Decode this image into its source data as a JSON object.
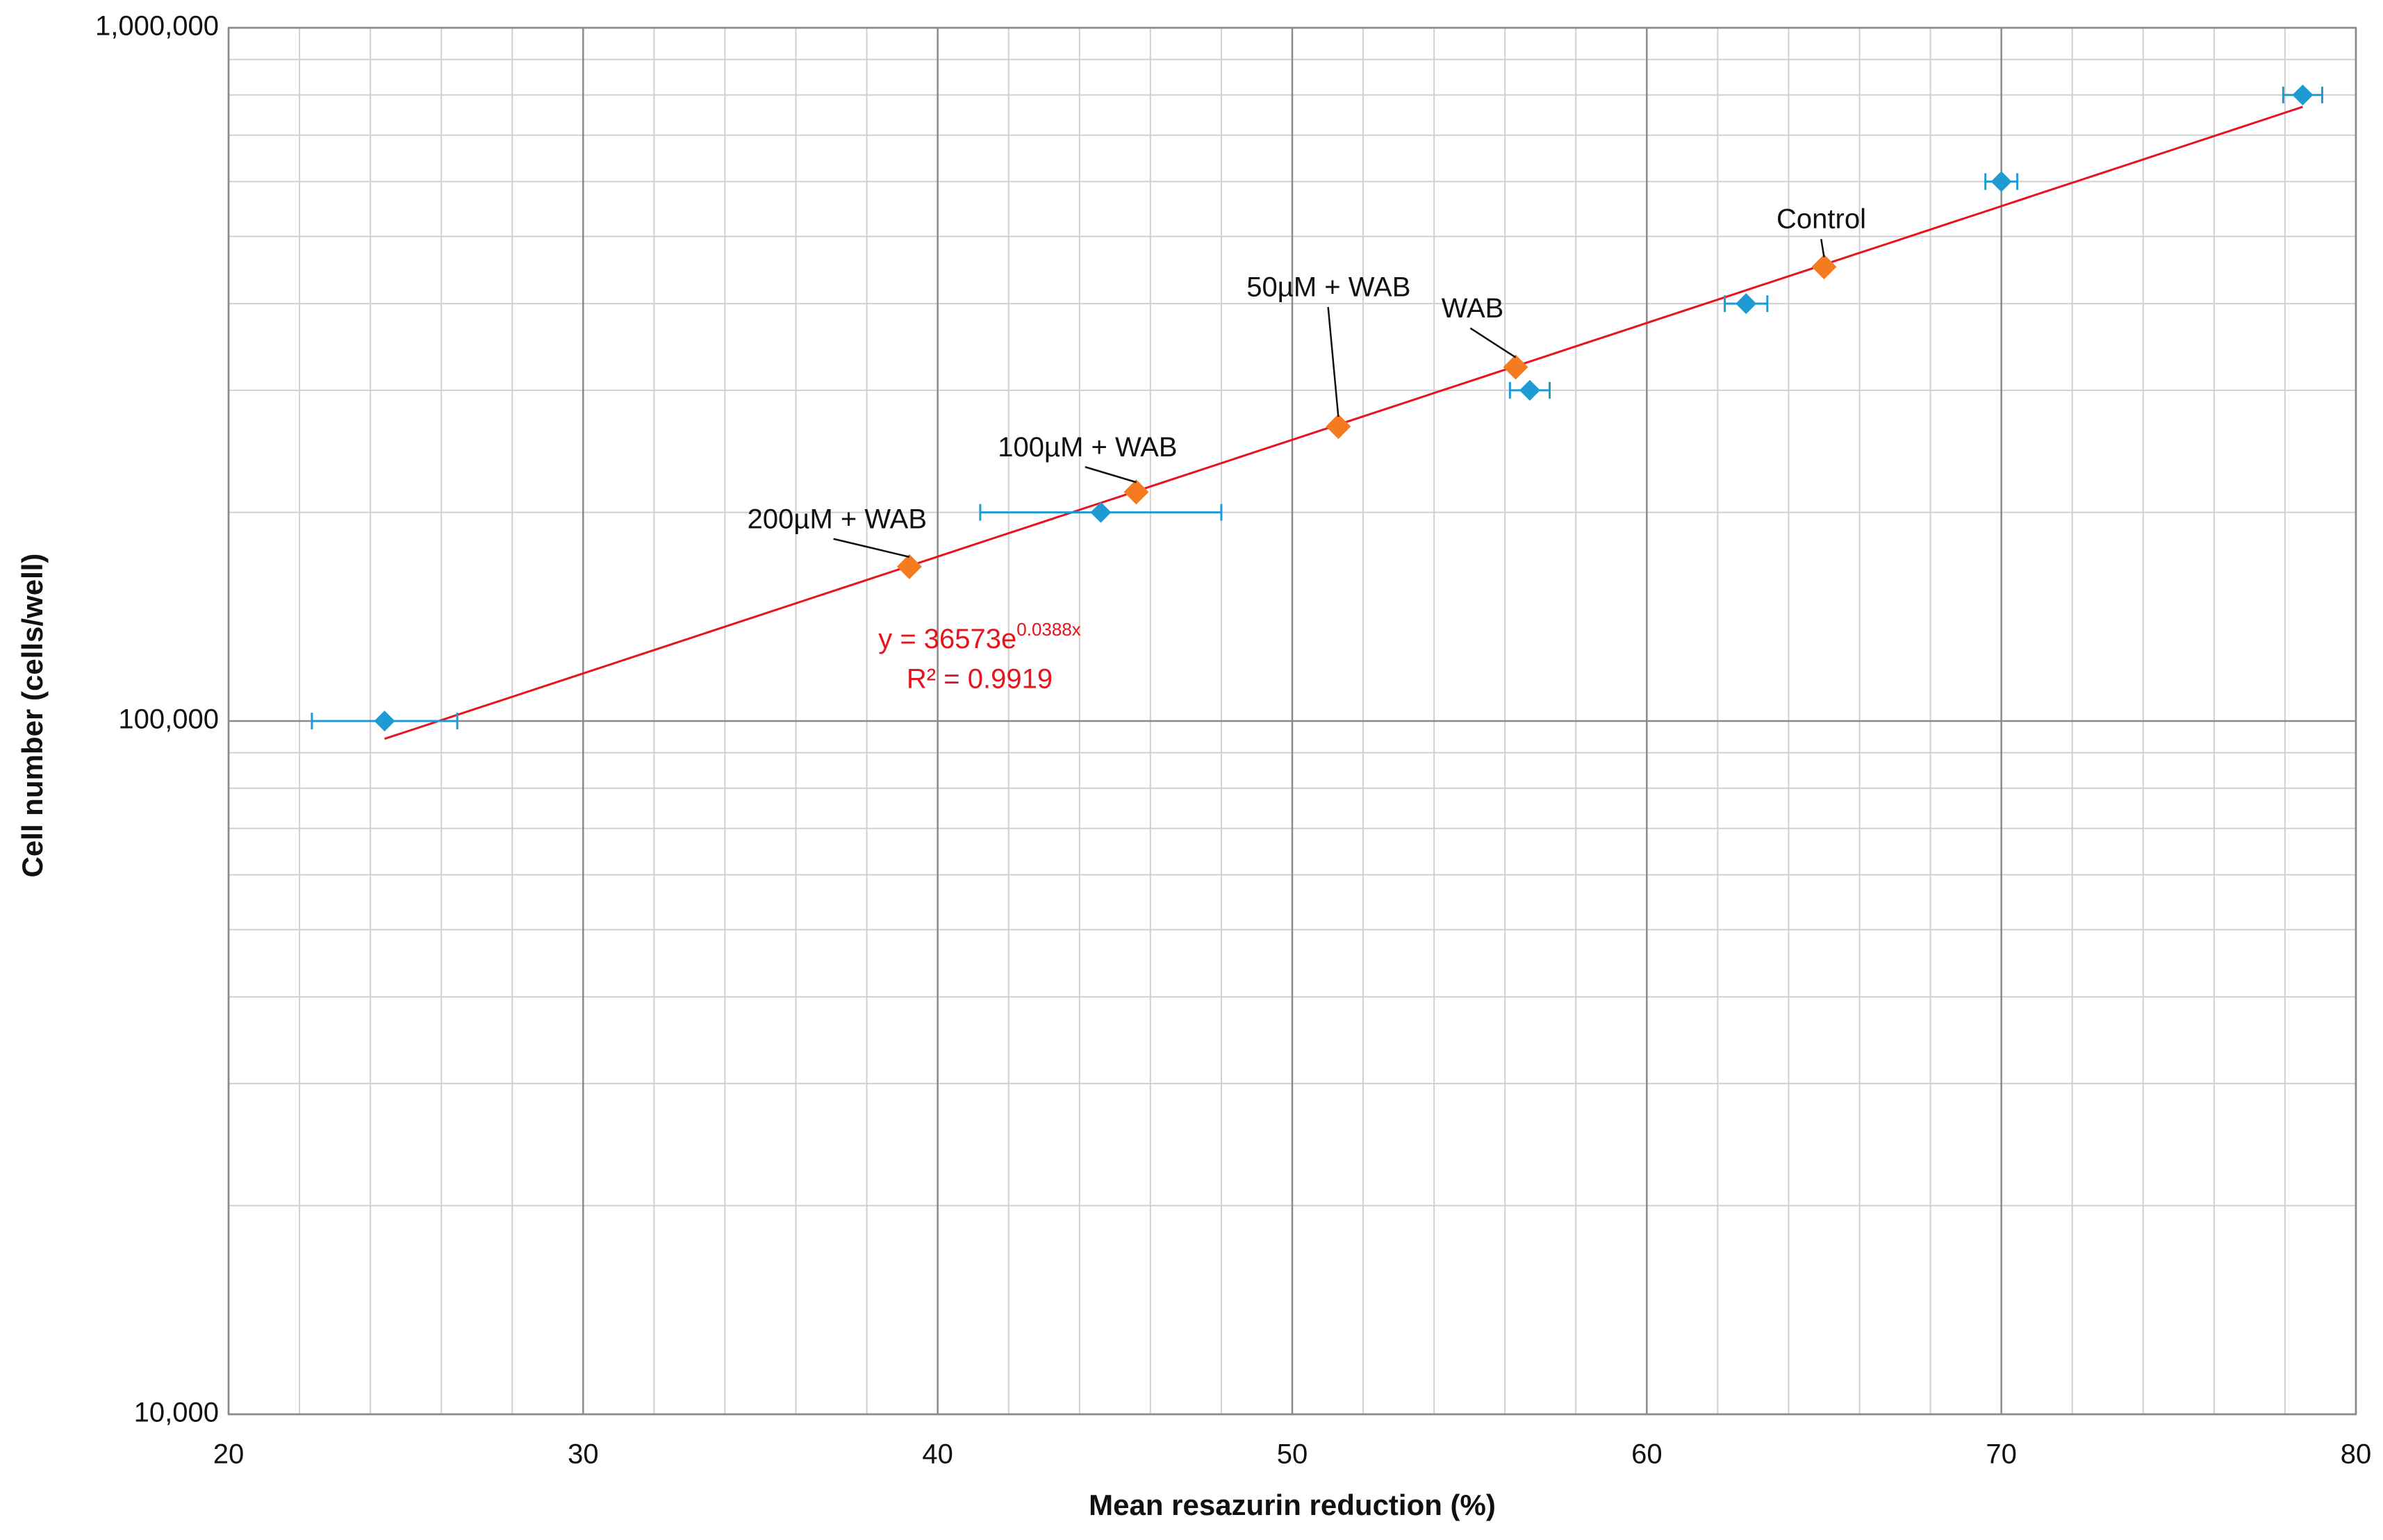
{
  "chart_data": {
    "type": "scatter",
    "xlabel": "Mean resazurin reduction (%)",
    "ylabel": "Cell number (cells/well)",
    "xlim": [
      20,
      80
    ],
    "xticks": [
      20,
      30,
      40,
      50,
      60,
      70,
      80
    ],
    "ylim": [
      10000,
      1000000
    ],
    "log_y": true,
    "yticks": [
      {
        "value": 10000,
        "label": "10,000"
      },
      {
        "value": 100000,
        "label": "100,000"
      },
      {
        "value": 1000000,
        "label": "1,000,000"
      }
    ],
    "grid": true,
    "minor_grid": true,
    "series": [
      {
        "color": "#1f9bd4",
        "marker": "diamond",
        "x": [
          24.4,
          44.6,
          56.7,
          62.8,
          70.0,
          78.5
        ],
        "y": [
          100000,
          200000,
          300000,
          400000,
          600000,
          800000
        ],
        "xerr": [
          2.05,
          3.4,
          0.56,
          0.6,
          0.45,
          0.55
        ]
      },
      {
        "color": "#f47b20",
        "marker": "diamond",
        "x": [
          39.2,
          45.6,
          51.3,
          56.3,
          65.0
        ],
        "y": [
          167000,
          214000,
          266000,
          324000,
          452000
        ],
        "labels": [
          "200µM + WAB",
          "100µM + WAB",
          "50µM + WAB",
          "WAB",
          "Control"
        ]
      }
    ],
    "trendline": {
      "color": "#e8131b",
      "a": 36573,
      "b": 0.0388,
      "equation": "y = 36573e",
      "exponent": "0.0388x",
      "r2": "R² = 0.9919"
    }
  }
}
